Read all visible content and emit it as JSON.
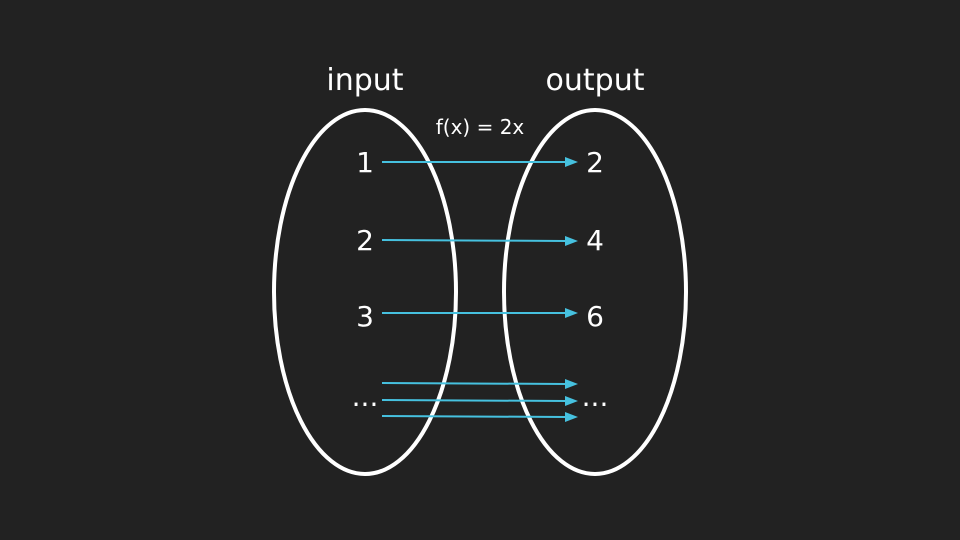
{
  "diagram": {
    "input_heading": "input",
    "output_heading": "output",
    "function_label": "f(x) = 2x",
    "inputs": [
      "1",
      "2",
      "3",
      "..."
    ],
    "outputs": [
      "2",
      "4",
      "6",
      "..."
    ],
    "arrow_color": "#46c1df",
    "oval_color": "#ffffff",
    "background_color": "#222222"
  }
}
